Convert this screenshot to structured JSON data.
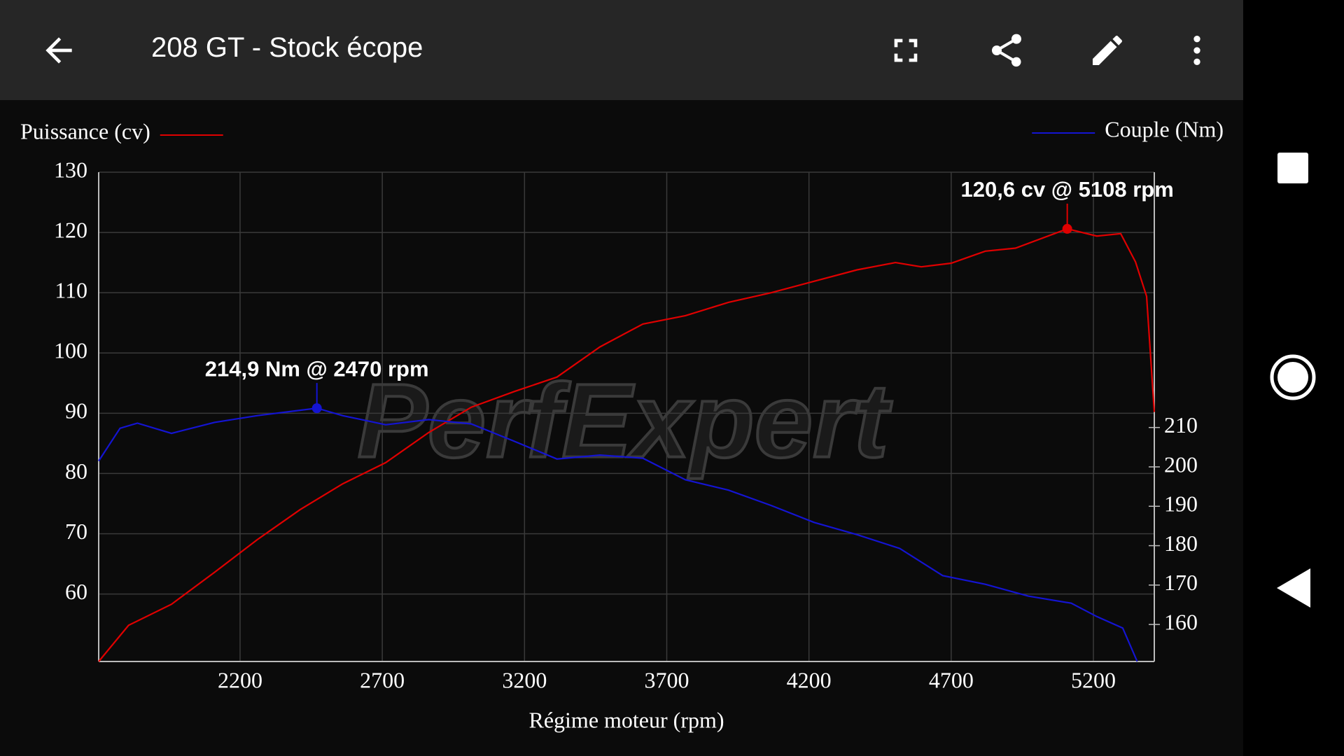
{
  "app_bar": {
    "title": "208 GT - Stock écope"
  },
  "chart_data": {
    "type": "line",
    "watermark": "PerfExpert",
    "xlabel": "Régime moteur (rpm)",
    "xlim": [
      1703,
      5414
    ],
    "xticks": [
      2200,
      2700,
      3200,
      3700,
      4200,
      4700,
      5200
    ],
    "ylim": [
      48.8,
      130
    ],
    "yticks": [
      60,
      70,
      80,
      90,
      100,
      110,
      120,
      130
    ],
    "y2lim": [
      150.6,
      274.8
    ],
    "y2ticks": [
      160,
      170,
      180,
      190,
      200,
      210
    ],
    "grid": true,
    "series": [
      {
        "name": "Puissance (cv)",
        "color": "#e00000",
        "x": [
          1703,
          1808,
          1959,
          2110,
          2260,
          2411,
          2561,
          2712,
          2863,
          3013,
          3164,
          3314,
          3465,
          3616,
          3766,
          3917,
          4067,
          4218,
          4369,
          4504,
          4595,
          4700,
          4820,
          4926,
          5108,
          5212,
          5296,
          5348,
          5387,
          5414
        ],
        "values": [
          48.8,
          54.8,
          58.3,
          63.6,
          69,
          74,
          78.3,
          81.8,
          86.8,
          91,
          93.6,
          96,
          101,
          104.8,
          106.2,
          108.4,
          110,
          111.9,
          113.8,
          115,
          114.3,
          114.9,
          116.9,
          117.4,
          120.6,
          119.4,
          119.8,
          115.1,
          109.4,
          90.2
        ]
      },
      {
        "name": "Couple (Nm)",
        "color": "#1414d2",
        "axis": "y2",
        "x": [
          1703,
          1778,
          1839,
          1959,
          2110,
          2260,
          2381,
          2470,
          2561,
          2712,
          2863,
          3013,
          3164,
          3314,
          3465,
          3616,
          3766,
          3917,
          4067,
          4218,
          4369,
          4519,
          4670,
          4820,
          4971,
          5122,
          5212,
          5303,
          5354
        ],
        "values": [
          201.5,
          209.8,
          211.1,
          208.5,
          211.3,
          213,
          214.1,
          214.9,
          213,
          210.7,
          212,
          210.9,
          206.5,
          202,
          203,
          202.2,
          196.7,
          194.1,
          190.2,
          185.9,
          182.8,
          179.3,
          172.4,
          170.2,
          167.2,
          165.4,
          162,
          159.1,
          150.6
        ]
      }
    ],
    "annotations": [
      {
        "text": "120,6 cv @ 5108 rpm",
        "x": 5108,
        "y": 120.6,
        "axis": "y"
      },
      {
        "text": "214,9 Nm @ 2470 rpm",
        "x": 2470,
        "y": 214.9,
        "axis": "y2"
      }
    ]
  }
}
